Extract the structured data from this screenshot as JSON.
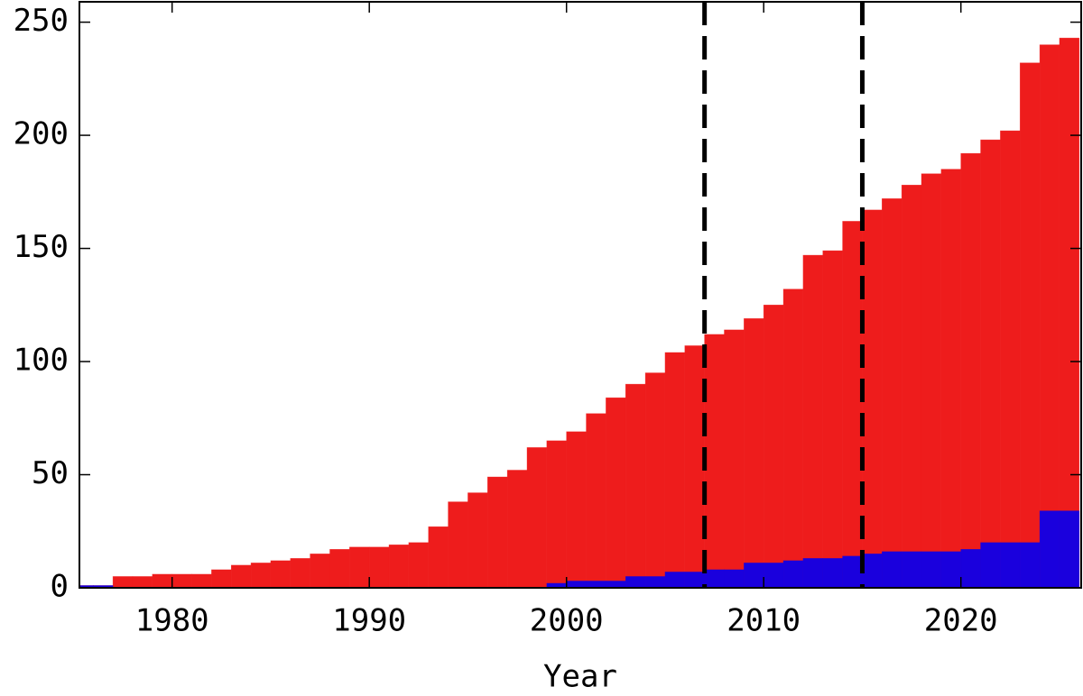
{
  "chart_data": {
    "type": "bar",
    "x_label": "Year",
    "x": [
      1975,
      1976,
      1977,
      1978,
      1979,
      1980,
      1981,
      1982,
      1983,
      1984,
      1985,
      1986,
      1987,
      1988,
      1989,
      1990,
      1991,
      1992,
      1993,
      1994,
      1995,
      1996,
      1997,
      1998,
      1999,
      2000,
      2001,
      2002,
      2003,
      2004,
      2005,
      2006,
      2007,
      2008,
      2009,
      2010,
      2011,
      2012,
      2013,
      2014,
      2015,
      2016,
      2017,
      2018,
      2019,
      2020,
      2021,
      2022,
      2023,
      2024,
      2025
    ],
    "series": [
      {
        "color": "#ee1c1c",
        "values": [
          1,
          1,
          5,
          5,
          6,
          6,
          6,
          8,
          10,
          11,
          12,
          13,
          15,
          17,
          18,
          18,
          19,
          20,
          27,
          38,
          42,
          49,
          52,
          62,
          65,
          69,
          77,
          84,
          90,
          95,
          104,
          107,
          112,
          114,
          119,
          125,
          132,
          147,
          149,
          162,
          167,
          172,
          178,
          183,
          185,
          192,
          198,
          202,
          232,
          240,
          243
        ]
      },
      {
        "color": "#1a00dd",
        "values": [
          1,
          1,
          0,
          0,
          0,
          0,
          0,
          0,
          0,
          0,
          0,
          0,
          0,
          0,
          0,
          0,
          0,
          0,
          0,
          0,
          0,
          0,
          0,
          0,
          2,
          3,
          3,
          3,
          5,
          5,
          7,
          7,
          8,
          8,
          11,
          11,
          12,
          13,
          13,
          14,
          15,
          16,
          16,
          16,
          16,
          17,
          20,
          20,
          20,
          34,
          34
        ]
      }
    ],
    "vlines": [
      2007,
      2015
    ],
    "xlim": [
      1975.3,
      2026.1
    ],
    "xticks": [
      1980,
      1990,
      2000,
      2010,
      2020
    ],
    "ylim": [
      0,
      259
    ],
    "yticks": [
      0,
      50,
      100,
      150,
      200,
      250
    ]
  }
}
